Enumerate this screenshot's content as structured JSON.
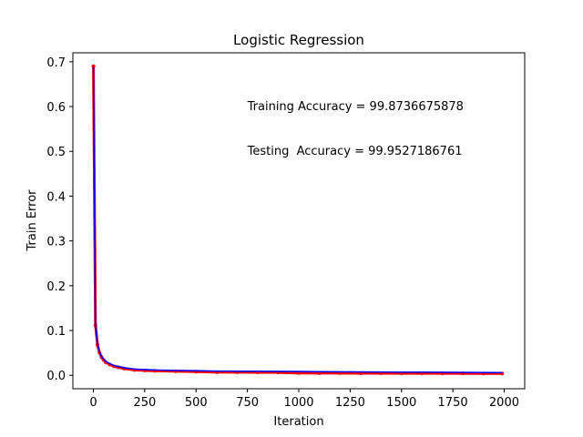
{
  "chart_data": {
    "type": "line",
    "title": "Logistic Regression",
    "xlabel": "Iteration",
    "ylabel": "Train Error",
    "xlim": [
      -100,
      2100
    ],
    "ylim": [
      -0.03,
      0.72
    ],
    "xticks": [
      0,
      250,
      500,
      750,
      1000,
      1250,
      1500,
      1750,
      2000
    ],
    "yticks": [
      0.0,
      0.1,
      0.2,
      0.3,
      0.4,
      0.5,
      0.6,
      0.7
    ],
    "xtick_labels": [
      "0",
      "250",
      "500",
      "750",
      "1000",
      "1250",
      "1500",
      "1750",
      "2000"
    ],
    "ytick_labels": [
      "0.0",
      "0.1",
      "0.2",
      "0.3",
      "0.4",
      "0.5",
      "0.6",
      "0.7"
    ],
    "grid": false,
    "annotations": [
      {
        "text": "Training Accuracy = 99.8736675878",
        "x": 750,
        "y": 0.6
      },
      {
        "text": "Testing  Accuracy = 99.9527186761",
        "x": 750,
        "y": 0.5
      }
    ],
    "series": [
      {
        "color": "#0000ff",
        "marker": "line",
        "x": [
          0,
          10,
          20,
          30,
          40,
          50,
          60,
          80,
          100,
          120,
          150,
          200,
          250,
          300,
          400,
          500,
          600,
          700,
          800,
          900,
          1000,
          1100,
          1200,
          1300,
          1400,
          1500,
          1600,
          1700,
          1800,
          1900,
          1990
        ],
        "y": [
          0.69,
          0.112,
          0.07,
          0.052,
          0.042,
          0.036,
          0.031,
          0.026,
          0.022,
          0.02,
          0.017,
          0.014,
          0.013,
          0.012,
          0.011,
          0.0105,
          0.0095,
          0.0092,
          0.009,
          0.0088,
          0.0085,
          0.008,
          0.0078,
          0.0076,
          0.0074,
          0.0072,
          0.007,
          0.0068,
          0.0066,
          0.0064,
          0.0062
        ]
      },
      {
        "color": "#ff0000",
        "marker": "dot",
        "x": [
          0,
          10,
          20,
          30,
          40,
          50,
          60,
          80,
          100,
          120,
          150,
          200,
          250,
          300,
          400,
          500,
          600,
          700,
          800,
          900,
          1000,
          1100,
          1200,
          1300,
          1400,
          1500,
          1600,
          1700,
          1800,
          1900,
          1990
        ],
        "y": [
          0.69,
          0.112,
          0.068,
          0.05,
          0.04,
          0.034,
          0.029,
          0.024,
          0.02,
          0.018,
          0.015,
          0.012,
          0.011,
          0.01,
          0.009,
          0.008,
          0.007,
          0.0068,
          0.0066,
          0.0064,
          0.005,
          0.0048,
          0.0047,
          0.0046,
          0.0045,
          0.0044,
          0.0043,
          0.0042,
          0.0042,
          0.0041,
          0.004
        ]
      }
    ]
  }
}
